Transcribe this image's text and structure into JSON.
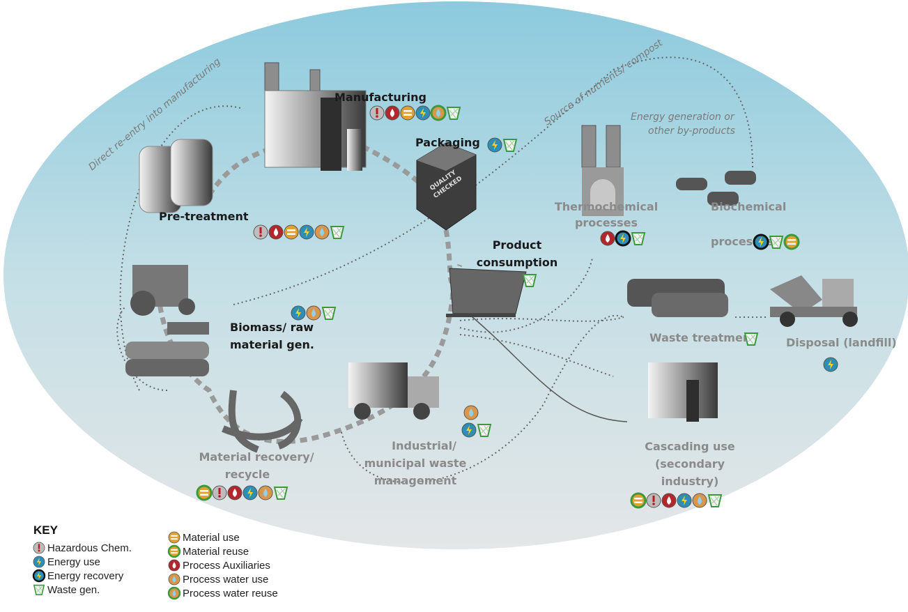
{
  "annotations": [
    "Direct re-entry into manufacturing",
    "Source of nutrients/ compost",
    "Energy generation or",
    "other by-products"
  ],
  "box_label": [
    "QUALITY",
    "CHECKED"
  ],
  "nodes": [
    {
      "label_lines": [
        "Manufacturing"
      ]
    },
    {
      "label_lines": [
        "Packaging"
      ]
    },
    {
      "label_lines": [
        "Pre-treatment"
      ]
    },
    {
      "label_lines": [
        "Thermochemical",
        "processes"
      ]
    },
    {
      "label_lines": [
        "Biochemical",
        "processes"
      ]
    },
    {
      "label_lines": [
        "Product",
        "consumption"
      ]
    },
    {
      "label_lines": [
        "Biomass/ raw",
        "material gen."
      ]
    },
    {
      "label_lines": [
        "Waste treatment"
      ]
    },
    {
      "label_lines": [
        "Disposal (landfill)"
      ]
    },
    {
      "label_lines": [
        "Material recovery/",
        "recycle"
      ]
    },
    {
      "label_lines": [
        "Industrial/",
        "municipal  waste",
        "management"
      ]
    },
    {
      "label_lines": [
        "Cascading use",
        "(secondary",
        "industry)"
      ]
    }
  ],
  "key": {
    "title": "KEY",
    "items": [
      "Hazardous Chem.",
      "Energy use",
      "Energy recovery",
      "Waste gen.",
      "Material use",
      "Material reuse",
      "Process Auxiliaries",
      "Process water use",
      "Process water reuse"
    ]
  }
}
